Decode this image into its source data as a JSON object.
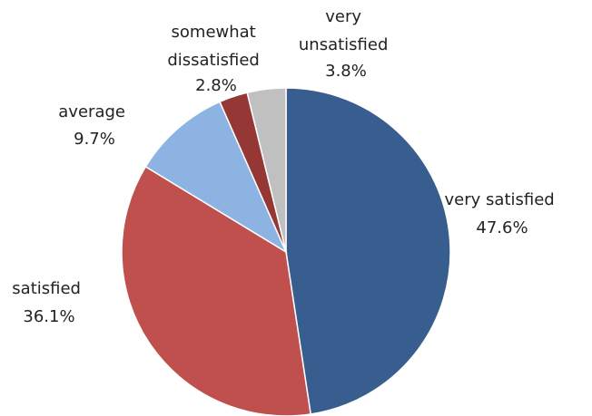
{
  "chart_data": {
    "type": "pie",
    "start_angle": "12 o'clock",
    "direction": "clockwise",
    "slices": [
      {
        "label": "very satisfied",
        "value": 47.6,
        "value_label": "47.6%",
        "color": "#375e8f"
      },
      {
        "label": "satisfied",
        "value": 36.1,
        "value_label": "36.1%",
        "color": "#c0504d"
      },
      {
        "label": "average",
        "value": 9.7,
        "value_label": "9.7%",
        "color": "#8db3e2"
      },
      {
        "label": "somewhat dissatisfied",
        "value": 2.8,
        "value_label": "2.8%",
        "color": "#953735"
      },
      {
        "label": "very unsatisfied",
        "value": 3.8,
        "value_label": "3.8%",
        "color": "#c0c0c0"
      }
    ]
  }
}
